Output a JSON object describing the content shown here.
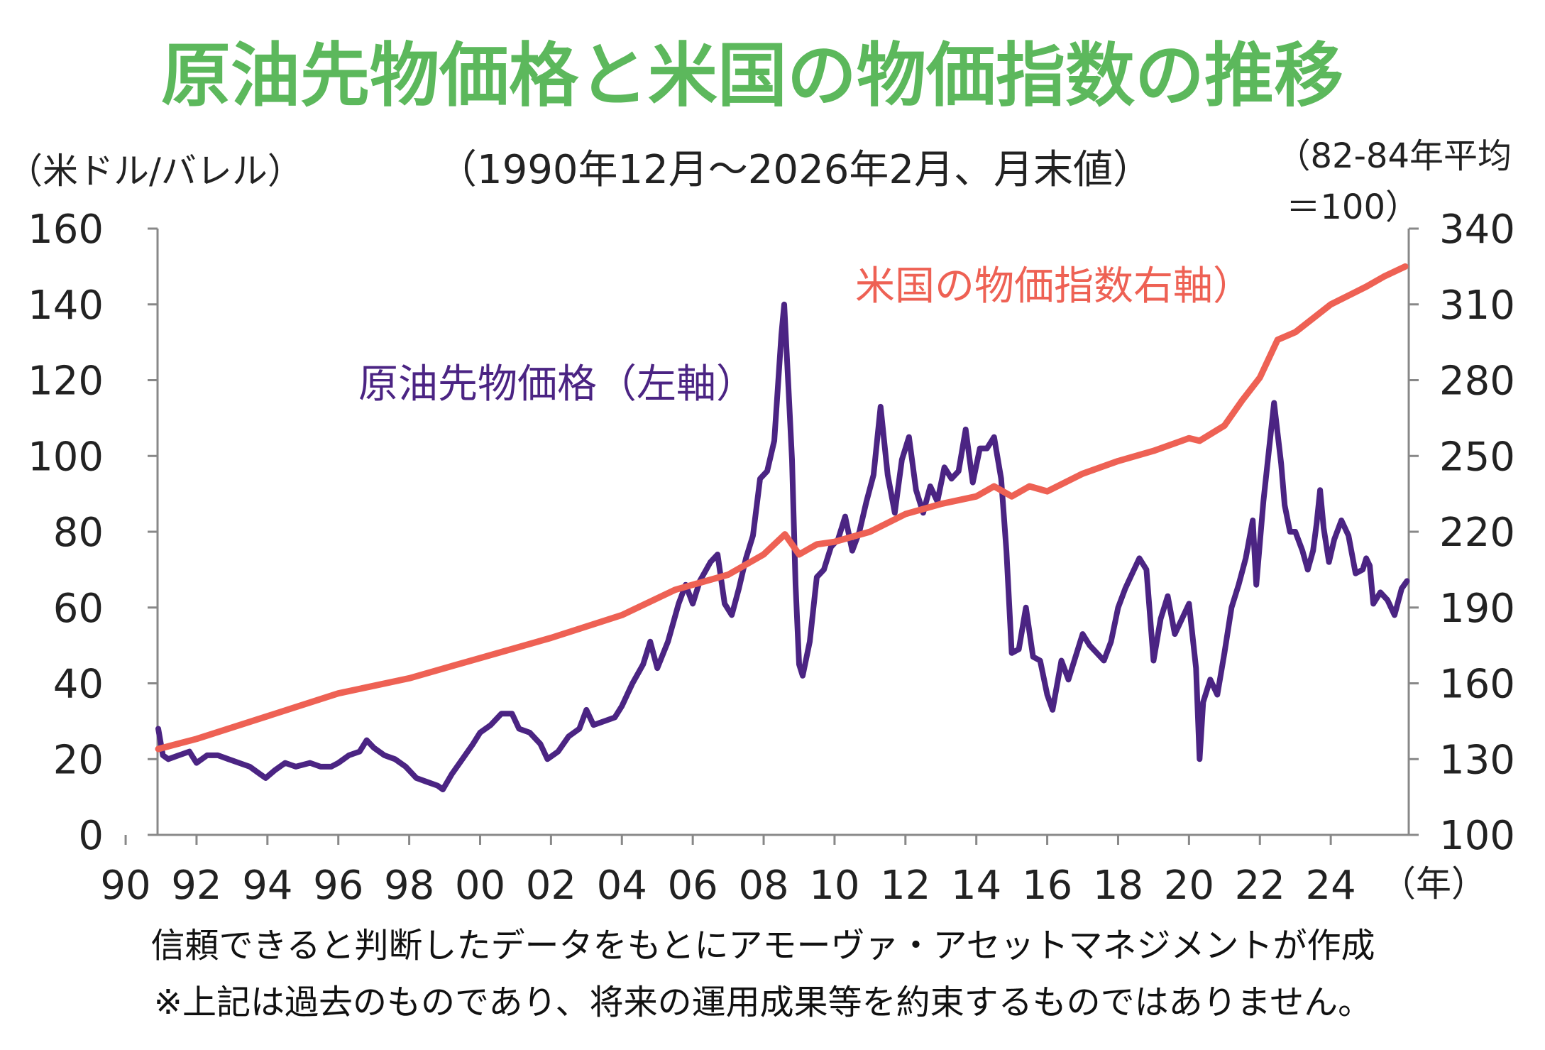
{
  "chart_data": {
    "type": "line",
    "title": "原油先物価格と米国の物価指数の推移",
    "subtitle": "（1990年12月～2026年2月、月末値）",
    "left_axis_unit": "（米ドル/バレル）",
    "right_axis_unit_line1": "（82-84年平均",
    "right_axis_unit_line2": "＝100）",
    "x_unit": "（年）",
    "footnote1": "信頼できると判断したデータをもとにアモーヴァ・アセットマネジメントが作成",
    "footnote2": "※上記は過去のものであり、将来の運用成果等を約束するものではありません。",
    "title_color": "#5cb85c",
    "xlim": [
      1990.9,
      2026.2
    ],
    "ylim_left": [
      0,
      160
    ],
    "ylim_right": [
      100,
      340
    ],
    "x_ticks": [
      1990,
      1992,
      1994,
      1996,
      1998,
      2000,
      2002,
      2004,
      2006,
      2008,
      2010,
      2012,
      2014,
      2016,
      2018,
      2020,
      2022,
      2024
    ],
    "x_tick_labels": [
      "90",
      "92",
      "94",
      "96",
      "98",
      "00",
      "02",
      "04",
      "06",
      "08",
      "10",
      "12",
      "14",
      "16",
      "18",
      "20",
      "22",
      "24"
    ],
    "y_left_ticks": [
      0,
      20,
      40,
      60,
      80,
      100,
      120,
      140,
      160
    ],
    "y_right_ticks": [
      100,
      130,
      160,
      190,
      220,
      250,
      280,
      310,
      340
    ],
    "series": [
      {
        "name": "原油先物価格（左軸）",
        "axis": "left",
        "color": "#4b2483",
        "points": [
          [
            1990.92,
            28
          ],
          [
            1991.05,
            21
          ],
          [
            1991.2,
            20
          ],
          [
            1991.5,
            21
          ],
          [
            1991.8,
            22
          ],
          [
            1992.0,
            19
          ],
          [
            1992.3,
            21
          ],
          [
            1992.6,
            21
          ],
          [
            1992.9,
            20
          ],
          [
            1993.2,
            19
          ],
          [
            1993.5,
            18
          ],
          [
            1993.8,
            16
          ],
          [
            1993.95,
            15
          ],
          [
            1994.2,
            17
          ],
          [
            1994.5,
            19
          ],
          [
            1994.8,
            18
          ],
          [
            1995.2,
            19
          ],
          [
            1995.5,
            18
          ],
          [
            1995.8,
            18
          ],
          [
            1996.0,
            19
          ],
          [
            1996.3,
            21
          ],
          [
            1996.6,
            22
          ],
          [
            1996.8,
            25
          ],
          [
            1997.0,
            23
          ],
          [
            1997.3,
            21
          ],
          [
            1997.6,
            20
          ],
          [
            1997.9,
            18
          ],
          [
            1998.2,
            15
          ],
          [
            1998.5,
            14
          ],
          [
            1998.8,
            13
          ],
          [
            1998.95,
            12
          ],
          [
            1999.2,
            16
          ],
          [
            1999.5,
            20
          ],
          [
            1999.8,
            24
          ],
          [
            2000.0,
            27
          ],
          [
            2000.3,
            29
          ],
          [
            2000.6,
            32
          ],
          [
            2000.9,
            32
          ],
          [
            2001.1,
            28
          ],
          [
            2001.4,
            27
          ],
          [
            2001.7,
            24
          ],
          [
            2001.9,
            20
          ],
          [
            2002.2,
            22
          ],
          [
            2002.5,
            26
          ],
          [
            2002.8,
            28
          ],
          [
            2003.0,
            33
          ],
          [
            2003.2,
            29
          ],
          [
            2003.5,
            30
          ],
          [
            2003.8,
            31
          ],
          [
            2004.0,
            34
          ],
          [
            2004.3,
            40
          ],
          [
            2004.6,
            45
          ],
          [
            2004.8,
            51
          ],
          [
            2005.0,
            44
          ],
          [
            2005.3,
            51
          ],
          [
            2005.6,
            61
          ],
          [
            2005.8,
            66
          ],
          [
            2006.0,
            61
          ],
          [
            2006.2,
            67
          ],
          [
            2006.5,
            72
          ],
          [
            2006.7,
            74
          ],
          [
            2006.9,
            61
          ],
          [
            2007.1,
            58
          ],
          [
            2007.3,
            65
          ],
          [
            2007.5,
            73
          ],
          [
            2007.7,
            79
          ],
          [
            2007.9,
            94
          ],
          [
            2008.1,
            96
          ],
          [
            2008.3,
            104
          ],
          [
            2008.5,
            132
          ],
          [
            2008.58,
            140
          ],
          [
            2008.7,
            118
          ],
          [
            2008.8,
            99
          ],
          [
            2008.9,
            66
          ],
          [
            2009.0,
            45
          ],
          [
            2009.1,
            42
          ],
          [
            2009.3,
            51
          ],
          [
            2009.5,
            68
          ],
          [
            2009.7,
            70
          ],
          [
            2009.9,
            76
          ],
          [
            2010.1,
            78
          ],
          [
            2010.3,
            84
          ],
          [
            2010.5,
            75
          ],
          [
            2010.7,
            80
          ],
          [
            2010.9,
            88
          ],
          [
            2011.1,
            95
          ],
          [
            2011.3,
            113
          ],
          [
            2011.5,
            95
          ],
          [
            2011.7,
            85
          ],
          [
            2011.9,
            99
          ],
          [
            2012.1,
            105
          ],
          [
            2012.3,
            91
          ],
          [
            2012.5,
            85
          ],
          [
            2012.7,
            92
          ],
          [
            2012.9,
            88
          ],
          [
            2013.1,
            97
          ],
          [
            2013.3,
            94
          ],
          [
            2013.5,
            96
          ],
          [
            2013.7,
            107
          ],
          [
            2013.9,
            93
          ],
          [
            2014.1,
            102
          ],
          [
            2014.3,
            102
          ],
          [
            2014.5,
            105
          ],
          [
            2014.7,
            94
          ],
          [
            2014.85,
            75
          ],
          [
            2015.0,
            48
          ],
          [
            2015.2,
            49
          ],
          [
            2015.4,
            60
          ],
          [
            2015.6,
            47
          ],
          [
            2015.8,
            46
          ],
          [
            2016.0,
            37
          ],
          [
            2016.15,
            33
          ],
          [
            2016.4,
            46
          ],
          [
            2016.6,
            41
          ],
          [
            2016.8,
            47
          ],
          [
            2017.0,
            53
          ],
          [
            2017.2,
            50
          ],
          [
            2017.4,
            48
          ],
          [
            2017.6,
            46
          ],
          [
            2017.8,
            51
          ],
          [
            2018.0,
            60
          ],
          [
            2018.2,
            65
          ],
          [
            2018.4,
            69
          ],
          [
            2018.6,
            73
          ],
          [
            2018.8,
            70
          ],
          [
            2019.0,
            46
          ],
          [
            2019.2,
            57
          ],
          [
            2019.4,
            63
          ],
          [
            2019.6,
            53
          ],
          [
            2019.8,
            57
          ],
          [
            2020.0,
            61
          ],
          [
            2020.2,
            44
          ],
          [
            2020.3,
            20
          ],
          [
            2020.4,
            35
          ],
          [
            2020.6,
            41
          ],
          [
            2020.8,
            37
          ],
          [
            2021.0,
            48
          ],
          [
            2021.2,
            60
          ],
          [
            2021.4,
            66
          ],
          [
            2021.6,
            73
          ],
          [
            2021.8,
            83
          ],
          [
            2021.9,
            66
          ],
          [
            2022.1,
            88
          ],
          [
            2022.25,
            101
          ],
          [
            2022.4,
            114
          ],
          [
            2022.5,
            106
          ],
          [
            2022.6,
            98
          ],
          [
            2022.7,
            87
          ],
          [
            2022.85,
            80
          ],
          [
            2023.0,
            80
          ],
          [
            2023.2,
            75
          ],
          [
            2023.35,
            70
          ],
          [
            2023.5,
            75
          ],
          [
            2023.6,
            82
          ],
          [
            2023.7,
            91
          ],
          [
            2023.8,
            81
          ],
          [
            2023.95,
            72
          ],
          [
            2024.1,
            78
          ],
          [
            2024.3,
            83
          ],
          [
            2024.5,
            79
          ],
          [
            2024.7,
            69
          ],
          [
            2024.9,
            70
          ],
          [
            2025.0,
            73
          ],
          [
            2025.1,
            71
          ],
          [
            2025.2,
            61
          ],
          [
            2025.4,
            64
          ],
          [
            2025.6,
            62
          ],
          [
            2025.8,
            58
          ],
          [
            2026.0,
            65
          ],
          [
            2026.15,
            67
          ]
        ]
      },
      {
        "name": "米国の物価指数右軸）",
        "axis": "right",
        "color": "#ee6154",
        "points": [
          [
            1990.92,
            134
          ],
          [
            1992.0,
            138
          ],
          [
            1994.0,
            147
          ],
          [
            1996.0,
            156
          ],
          [
            1998.0,
            162
          ],
          [
            2000.0,
            170
          ],
          [
            2002.0,
            178
          ],
          [
            2004.0,
            187
          ],
          [
            2005.5,
            197
          ],
          [
            2006.0,
            199
          ],
          [
            2007.0,
            203
          ],
          [
            2008.0,
            211
          ],
          [
            2008.6,
            219
          ],
          [
            2009.0,
            211
          ],
          [
            2009.5,
            215
          ],
          [
            2010.0,
            216
          ],
          [
            2011.0,
            220
          ],
          [
            2012.0,
            227
          ],
          [
            2013.0,
            231
          ],
          [
            2014.0,
            234
          ],
          [
            2014.5,
            238
          ],
          [
            2015.0,
            234
          ],
          [
            2015.5,
            238
          ],
          [
            2016.0,
            236
          ],
          [
            2017.0,
            243
          ],
          [
            2018.0,
            248
          ],
          [
            2019.0,
            252
          ],
          [
            2020.0,
            257
          ],
          [
            2020.3,
            256
          ],
          [
            2021.0,
            262
          ],
          [
            2021.5,
            272
          ],
          [
            2022.0,
            281
          ],
          [
            2022.5,
            296
          ],
          [
            2023.0,
            299
          ],
          [
            2024.0,
            310
          ],
          [
            2025.0,
            317
          ],
          [
            2025.5,
            321
          ],
          [
            2026.1,
            325
          ]
        ]
      }
    ]
  }
}
